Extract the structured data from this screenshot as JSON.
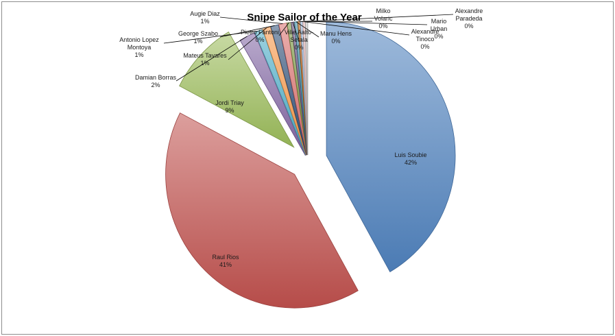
{
  "chart_data": {
    "type": "pie",
    "title": "Snipe Sailor of the Year",
    "exploded": true,
    "style": "3d-gradient",
    "slices": [
      {
        "name": "Luis Soubie",
        "value": 42,
        "label": "42%",
        "color": "#4f81bd"
      },
      {
        "name": "Raul Rios",
        "value": 41,
        "label": "41%",
        "color": "#c0504d"
      },
      {
        "name": "Jordi Triay",
        "value": 9,
        "label": "9%",
        "color": "#9bbb59"
      },
      {
        "name": "Damian Borras",
        "value": 2,
        "label": "2%",
        "color": "#8064a2"
      },
      {
        "name": "Antonio Lopez Montoya",
        "value": 1,
        "label": "1%",
        "color": "#4bacc6"
      },
      {
        "name": "Mateus Tavares",
        "value": 1,
        "label": "1%",
        "color": "#f79646"
      },
      {
        "name": "George Szabo",
        "value": 1,
        "label": "1%",
        "color": "#2c4d75"
      },
      {
        "name": "Augie Diaz",
        "value": 1,
        "label": "1%",
        "color": "#d86e6b"
      },
      {
        "name": "Pietro Fantoni",
        "value": 0.5,
        "label": "0%",
        "color": "#77933c"
      },
      {
        "name": "Ville Aalto-Setala",
        "value": 0.4,
        "label": "0%",
        "color": "#5f497a"
      },
      {
        "name": "Manu Hens",
        "value": 0.4,
        "label": "0%",
        "color": "#31859c"
      },
      {
        "name": "Milko Volaric",
        "value": 0.3,
        "label": "0%",
        "color": "#b65708"
      },
      {
        "name": "Alexandre Tinoco",
        "value": 0.3,
        "label": "0%",
        "color": "#95b3d7"
      },
      {
        "name": "Mario Urban",
        "value": 0.3,
        "label": "0%",
        "color": "#e6b9b8"
      },
      {
        "name": "Alexandre Paradeda",
        "value": 0.3,
        "label": "0%",
        "color": "#bfbfbf"
      }
    ]
  }
}
